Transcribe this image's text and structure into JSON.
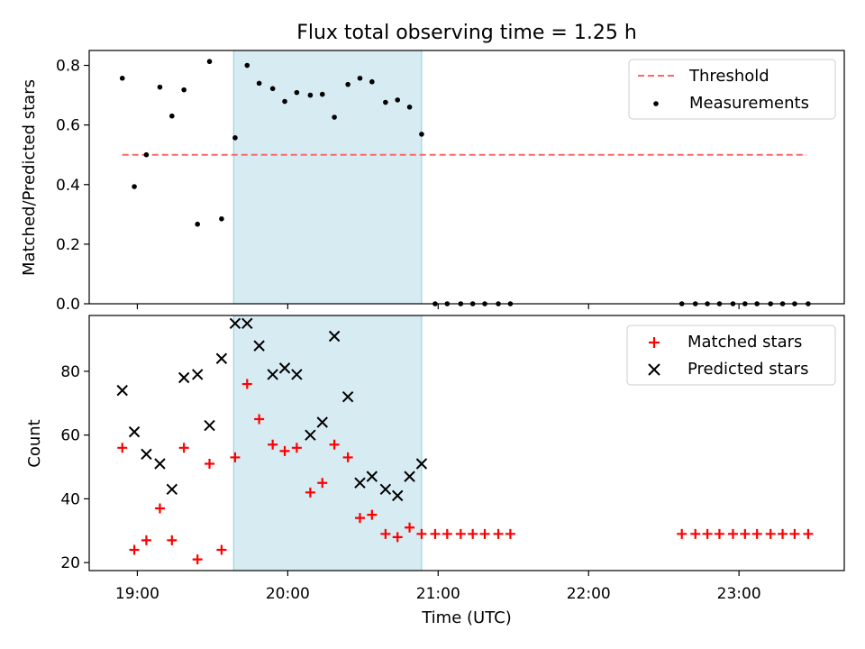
{
  "chart_data": {
    "title": "Flux total observing time = 1.25 h",
    "xlabel": "Time (UTC)",
    "x_unit": "hours",
    "xlim": [
      18.68,
      23.7
    ],
    "xticks": [
      19,
      20,
      21,
      22,
      23
    ],
    "xtick_labels": [
      "19:00",
      "20:00",
      "21:00",
      "22:00",
      "23:00"
    ],
    "shaded_region": {
      "x": [
        19.64,
        20.89
      ],
      "color": "#add8e6"
    },
    "panels": [
      {
        "type": "scatter",
        "ylabel": "Matched/Predicted stars",
        "ylim": [
          0.0,
          0.85
        ],
        "yticks": [
          0.0,
          0.2,
          0.4,
          0.6,
          0.8
        ],
        "ytick_labels": [
          "0.0",
          "0.2",
          "0.4",
          "0.6",
          "0.8"
        ],
        "legend_position": "top-right",
        "threshold": {
          "name": "Threshold",
          "value": 0.5,
          "x": [
            18.9,
            23.45
          ],
          "color": "#ff6666"
        },
        "series": [
          {
            "name": "Measurements",
            "color": "#000000",
            "marker": "dot",
            "points": [
              [
                18.9,
                0.757
              ],
              [
                18.98,
                0.393
              ],
              [
                19.06,
                0.5
              ],
              [
                19.15,
                0.727
              ],
              [
                19.23,
                0.63
              ],
              [
                19.31,
                0.718
              ],
              [
                19.4,
                0.267
              ],
              [
                19.48,
                0.813
              ],
              [
                19.56,
                0.285
              ],
              [
                19.65,
                0.557
              ],
              [
                19.73,
                0.8
              ],
              [
                19.81,
                0.74
              ],
              [
                19.9,
                0.722
              ],
              [
                19.98,
                0.679
              ],
              [
                20.06,
                0.709
              ],
              [
                20.15,
                0.7
              ],
              [
                20.23,
                0.703
              ],
              [
                20.31,
                0.626
              ],
              [
                20.4,
                0.736
              ],
              [
                20.48,
                0.757
              ],
              [
                20.56,
                0.745
              ],
              [
                20.65,
                0.676
              ],
              [
                20.73,
                0.684
              ],
              [
                20.81,
                0.66
              ],
              [
                20.89,
                0.569
              ],
              [
                20.98,
                0.0
              ],
              [
                21.06,
                0.0
              ],
              [
                21.15,
                0.0
              ],
              [
                21.23,
                0.0
              ],
              [
                21.31,
                0.0
              ],
              [
                21.4,
                0.0
              ],
              [
                21.48,
                0.0
              ],
              [
                22.62,
                0.0
              ],
              [
                22.71,
                0.0
              ],
              [
                22.79,
                0.0
              ],
              [
                22.87,
                0.0
              ],
              [
                22.96,
                0.0
              ],
              [
                23.04,
                0.0
              ],
              [
                23.12,
                0.0
              ],
              [
                23.21,
                0.0
              ],
              [
                23.29,
                0.0
              ],
              [
                23.37,
                0.0
              ],
              [
                23.46,
                0.0
              ]
            ]
          }
        ]
      },
      {
        "type": "scatter",
        "ylabel": "Count",
        "ylim": [
          17.5,
          97.5
        ],
        "yticks": [
          20,
          40,
          60,
          80
        ],
        "ytick_labels": [
          "20",
          "40",
          "60",
          "80"
        ],
        "legend_position": "top-right",
        "series": [
          {
            "name": "Matched stars",
            "color": "#ff0000",
            "marker": "plus",
            "points": [
              [
                18.9,
                56
              ],
              [
                18.98,
                24
              ],
              [
                19.06,
                27
              ],
              [
                19.15,
                37
              ],
              [
                19.23,
                27
              ],
              [
                19.31,
                56
              ],
              [
                19.4,
                21
              ],
              [
                19.48,
                51
              ],
              [
                19.56,
                24
              ],
              [
                19.65,
                53
              ],
              [
                19.73,
                76
              ],
              [
                19.81,
                65
              ],
              [
                19.9,
                57
              ],
              [
                19.98,
                55
              ],
              [
                20.06,
                56
              ],
              [
                20.15,
                42
              ],
              [
                20.23,
                45
              ],
              [
                20.31,
                57
              ],
              [
                20.4,
                53
              ],
              [
                20.48,
                34
              ],
              [
                20.56,
                35
              ],
              [
                20.65,
                29
              ],
              [
                20.73,
                28
              ],
              [
                20.81,
                31
              ],
              [
                20.89,
                29
              ],
              [
                20.98,
                29
              ],
              [
                21.06,
                29
              ],
              [
                21.15,
                29
              ],
              [
                21.23,
                29
              ],
              [
                21.31,
                29
              ],
              [
                21.4,
                29
              ],
              [
                21.48,
                29
              ],
              [
                22.62,
                29
              ],
              [
                22.71,
                29
              ],
              [
                22.79,
                29
              ],
              [
                22.87,
                29
              ],
              [
                22.96,
                29
              ],
              [
                23.04,
                29
              ],
              [
                23.12,
                29
              ],
              [
                23.21,
                29
              ],
              [
                23.29,
                29
              ],
              [
                23.37,
                29
              ],
              [
                23.46,
                29
              ]
            ]
          },
          {
            "name": "Predicted stars",
            "color": "#000000",
            "marker": "x",
            "points": [
              [
                18.9,
                74
              ],
              [
                18.98,
                61
              ],
              [
                19.06,
                54
              ],
              [
                19.15,
                51
              ],
              [
                19.23,
                43
              ],
              [
                19.31,
                78
              ],
              [
                19.4,
                79
              ],
              [
                19.48,
                63
              ],
              [
                19.56,
                84
              ],
              [
                19.65,
                95
              ],
              [
                19.73,
                95
              ],
              [
                19.81,
                88
              ],
              [
                19.9,
                79
              ],
              [
                19.98,
                81
              ],
              [
                20.06,
                79
              ],
              [
                20.15,
                60
              ],
              [
                20.23,
                64
              ],
              [
                20.31,
                91
              ],
              [
                20.4,
                72
              ],
              [
                20.48,
                45
              ],
              [
                20.56,
                47
              ],
              [
                20.65,
                43
              ],
              [
                20.73,
                41
              ],
              [
                20.81,
                47
              ],
              [
                20.89,
                51
              ]
            ]
          }
        ]
      }
    ]
  }
}
